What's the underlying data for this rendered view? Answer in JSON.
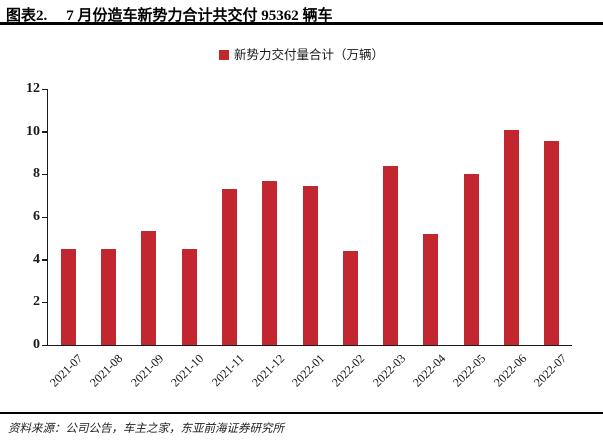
{
  "header": {
    "title_prefix": "图表2.",
    "title_text": "7 月份造车新势力合计共交付 95362 辆车"
  },
  "legend": {
    "label": "新势力交付量合计（万辆）"
  },
  "chart_data": {
    "type": "bar",
    "title": "新势力交付量合计（万辆）",
    "categories": [
      "2021-07",
      "2021-08",
      "2021-09",
      "2021-10",
      "2021-11",
      "2021-12",
      "2022-01",
      "2022-02",
      "2022-03",
      "2022-04",
      "2022-05",
      "2022-06",
      "2022-07"
    ],
    "values": [
      4.5,
      4.5,
      5.35,
      4.5,
      7.3,
      7.7,
      7.45,
      4.4,
      8.4,
      5.2,
      8.0,
      10.1,
      9.54
    ],
    "xlabel": "",
    "ylabel": "",
    "ylim": [
      0,
      12
    ],
    "y_ticks": [
      0,
      2,
      4,
      6,
      8,
      10,
      12
    ],
    "grid": false,
    "legend_position": "top",
    "bar_color": "#c2262e"
  },
  "footer": {
    "source": "资料来源：公司公告，车主之家，东亚前海证券研究所"
  },
  "colors": {
    "accent_red": "#c2262e",
    "rule_black": "#000000"
  }
}
